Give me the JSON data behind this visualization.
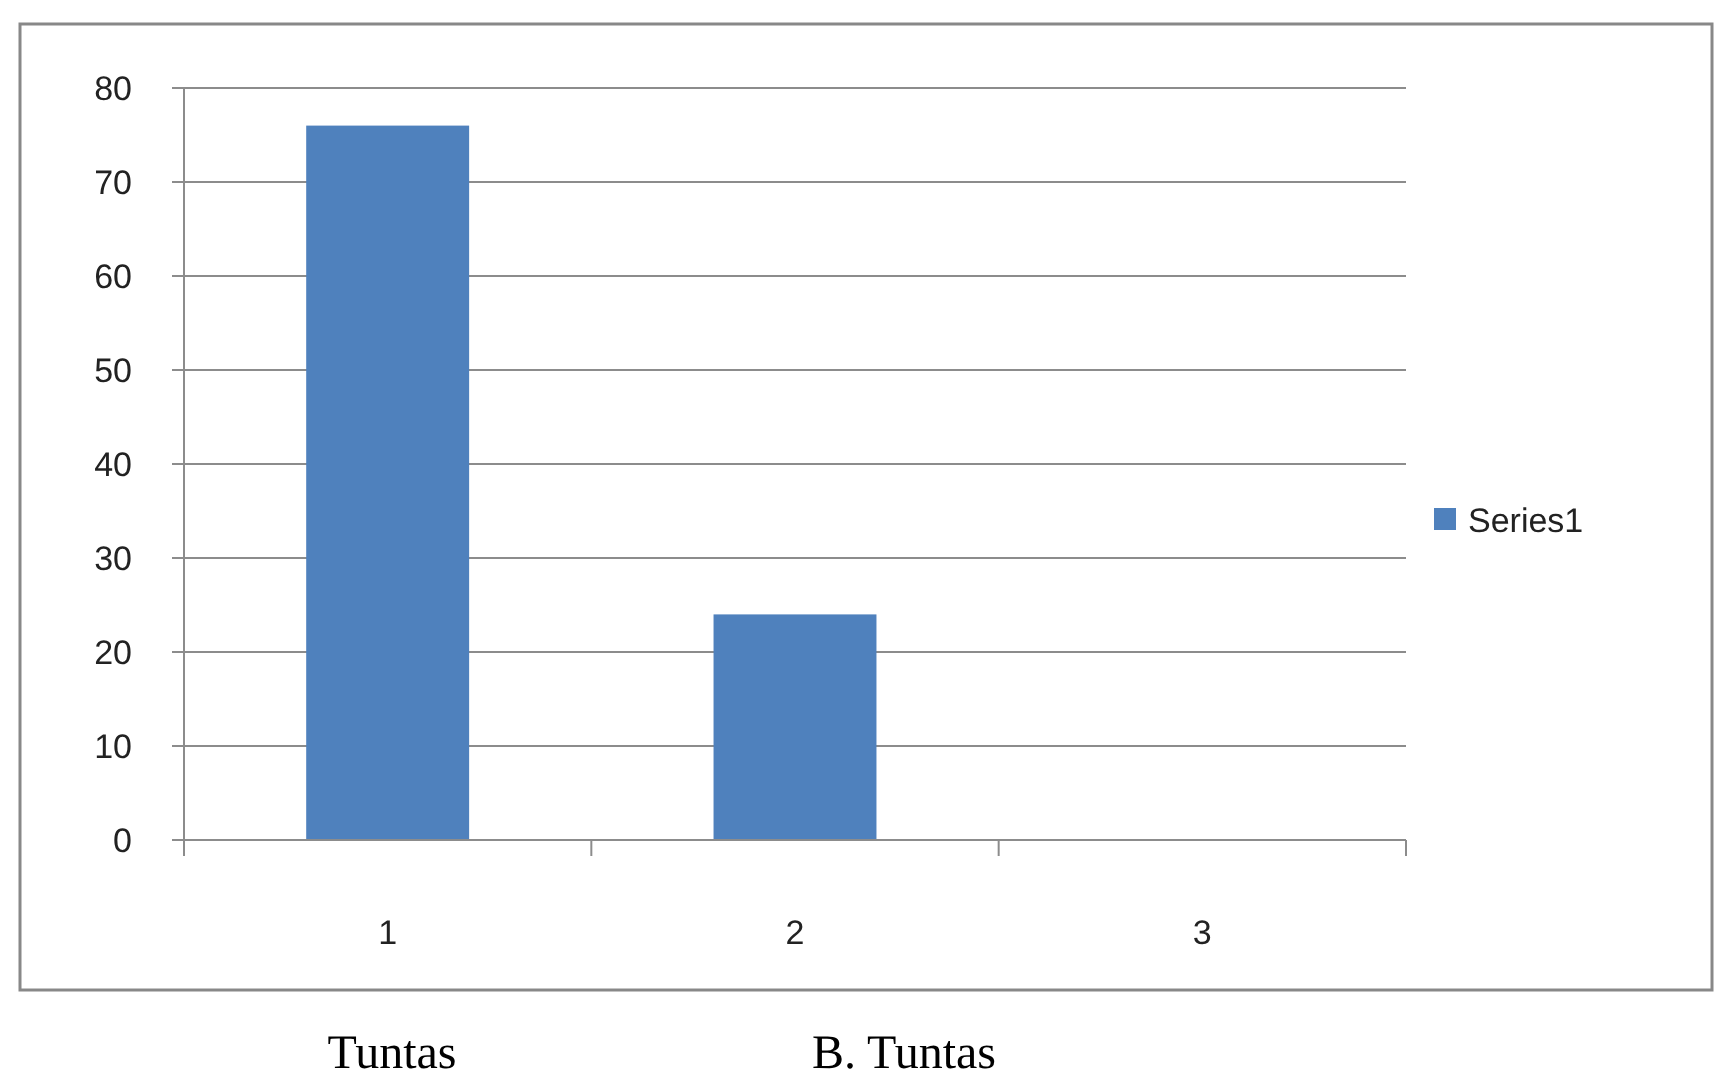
{
  "chart_data": {
    "type": "bar",
    "categories": [
      "1",
      "2",
      "3"
    ],
    "series": [
      {
        "name": "Series1",
        "color": "#4f81bd",
        "values": [
          76,
          24,
          0
        ]
      }
    ],
    "ylim": [
      0,
      80
    ],
    "yticks": [
      0,
      10,
      20,
      30,
      40,
      50,
      60,
      70,
      80
    ],
    "grid": "y",
    "legend": "right",
    "annotations": [
      "Tuntas",
      "B. Tuntas"
    ]
  }
}
